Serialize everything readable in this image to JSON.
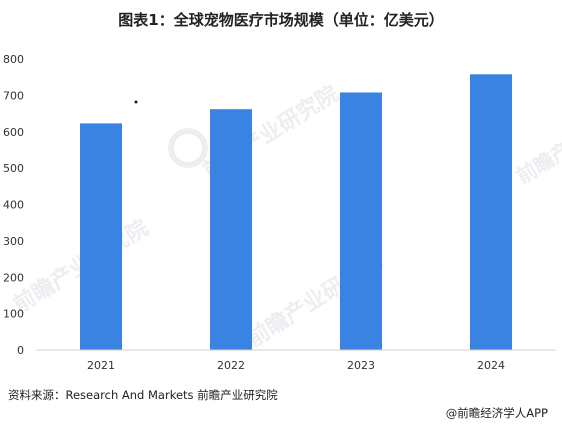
{
  "chart_data": {
    "type": "bar",
    "title": "图表1：全球宠物医疗市场规模（单位：亿美元）",
    "categories": [
      "2021",
      "2022",
      "2023",
      "2024"
    ],
    "series": [
      {
        "values": [
          623,
          662,
          708,
          758
        ]
      }
    ],
    "ylim": [
      0,
      800
    ],
    "yticks": [
      0,
      100,
      200,
      300,
      400,
      500,
      600,
      700,
      800
    ],
    "xlabel": "",
    "ylabel": "",
    "grid": false,
    "legend": "none",
    "bar_color": "#3a83e3"
  },
  "source_text": "资料来源：Research And Markets  前瞻产业研究院",
  "footer_text": "@前瞻经济学人APP",
  "watermark_text": "前瞻产业研究院"
}
